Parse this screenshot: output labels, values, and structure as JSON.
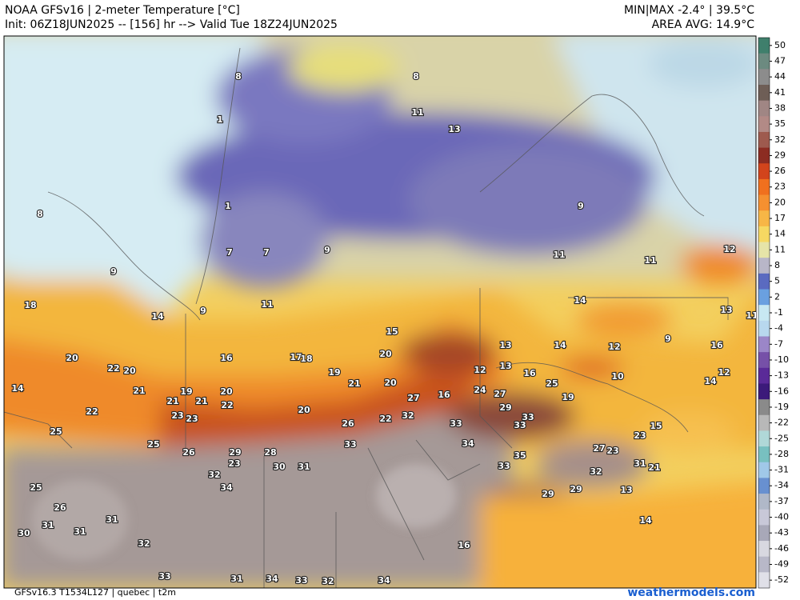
{
  "header": {
    "title": "NOAA GFSv16 | 2-meter Temperature [°C]",
    "init": "Init: 06Z18JUN2025 -- [156] hr --> Valid Tue 18Z24JUN2025",
    "minmax": "MIN|MAX -2.4° | 39.5°C",
    "area_avg": "AREA AVG: 14.9°C"
  },
  "colorbar": {
    "ticks": [
      50,
      47,
      44,
      41,
      38,
      35,
      32,
      29,
      26,
      23,
      20,
      17,
      14,
      11,
      8,
      5,
      2,
      -1,
      -4,
      -7,
      -10,
      -13,
      -16,
      -19,
      -22,
      -25,
      -28,
      -31,
      -34,
      -37,
      -40,
      -43,
      -46,
      -49,
      -52
    ]
  },
  "map_labels": [
    8,
    1,
    8,
    1,
    9,
    18,
    14,
    9,
    11,
    7,
    7,
    9,
    8,
    11,
    13,
    9,
    11,
    11,
    14,
    13,
    15,
    16,
    17,
    18,
    20,
    19,
    20,
    22,
    20,
    21,
    21,
    21,
    20,
    22,
    19,
    14,
    25,
    22,
    23,
    23,
    20,
    21,
    20,
    27,
    16,
    26,
    22,
    32,
    25,
    26,
    29,
    28,
    23,
    32,
    34,
    30,
    31,
    33,
    33,
    34,
    33,
    35,
    33,
    29,
    29,
    32,
    12,
    13,
    14,
    12,
    9,
    10,
    16,
    12,
    14,
    15,
    21,
    13,
    14,
    16,
    32,
    34,
    31,
    34,
    33,
    30,
    31,
    31,
    25,
    26,
    31,
    32,
    33,
    13,
    16,
    24,
    27,
    29,
    33,
    19,
    25,
    27,
    23,
    31,
    23,
    12,
    11
  ],
  "footer": {
    "left": "GFSv16.3 T1534L127 | quebec | t2m",
    "right": "weathermodels.com"
  }
}
